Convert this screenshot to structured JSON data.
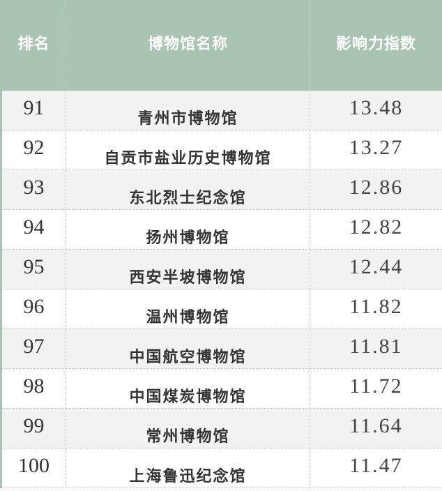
{
  "colors": {
    "header_bg": "#a9c4b3",
    "header_text": "#ffffff",
    "alt_row": "#f2f2f2"
  },
  "headers": [
    "排名",
    "博物馆名称",
    "影响力指数"
  ],
  "rows": [
    {
      "rank": "91",
      "name": "青州市博物馆",
      "score": "13.48"
    },
    {
      "rank": "92",
      "name": "自贡市盐业历史博物馆",
      "score": "13.27"
    },
    {
      "rank": "93",
      "name": "东北烈士纪念馆",
      "score": "12.86"
    },
    {
      "rank": "94",
      "name": "扬州博物馆",
      "score": "12.82"
    },
    {
      "rank": "95",
      "name": "西安半坡博物馆",
      "score": "12.44"
    },
    {
      "rank": "96",
      "name": "温州博物馆",
      "score": "11.82"
    },
    {
      "rank": "97",
      "name": "中国航空博物馆",
      "score": "11.81"
    },
    {
      "rank": "98",
      "name": "中国煤炭博物馆",
      "score": "11.72"
    },
    {
      "rank": "99",
      "name": "常州博物馆",
      "score": "11.64"
    },
    {
      "rank": "100",
      "name": "上海鲁迅纪念馆",
      "score": "11.47"
    }
  ]
}
